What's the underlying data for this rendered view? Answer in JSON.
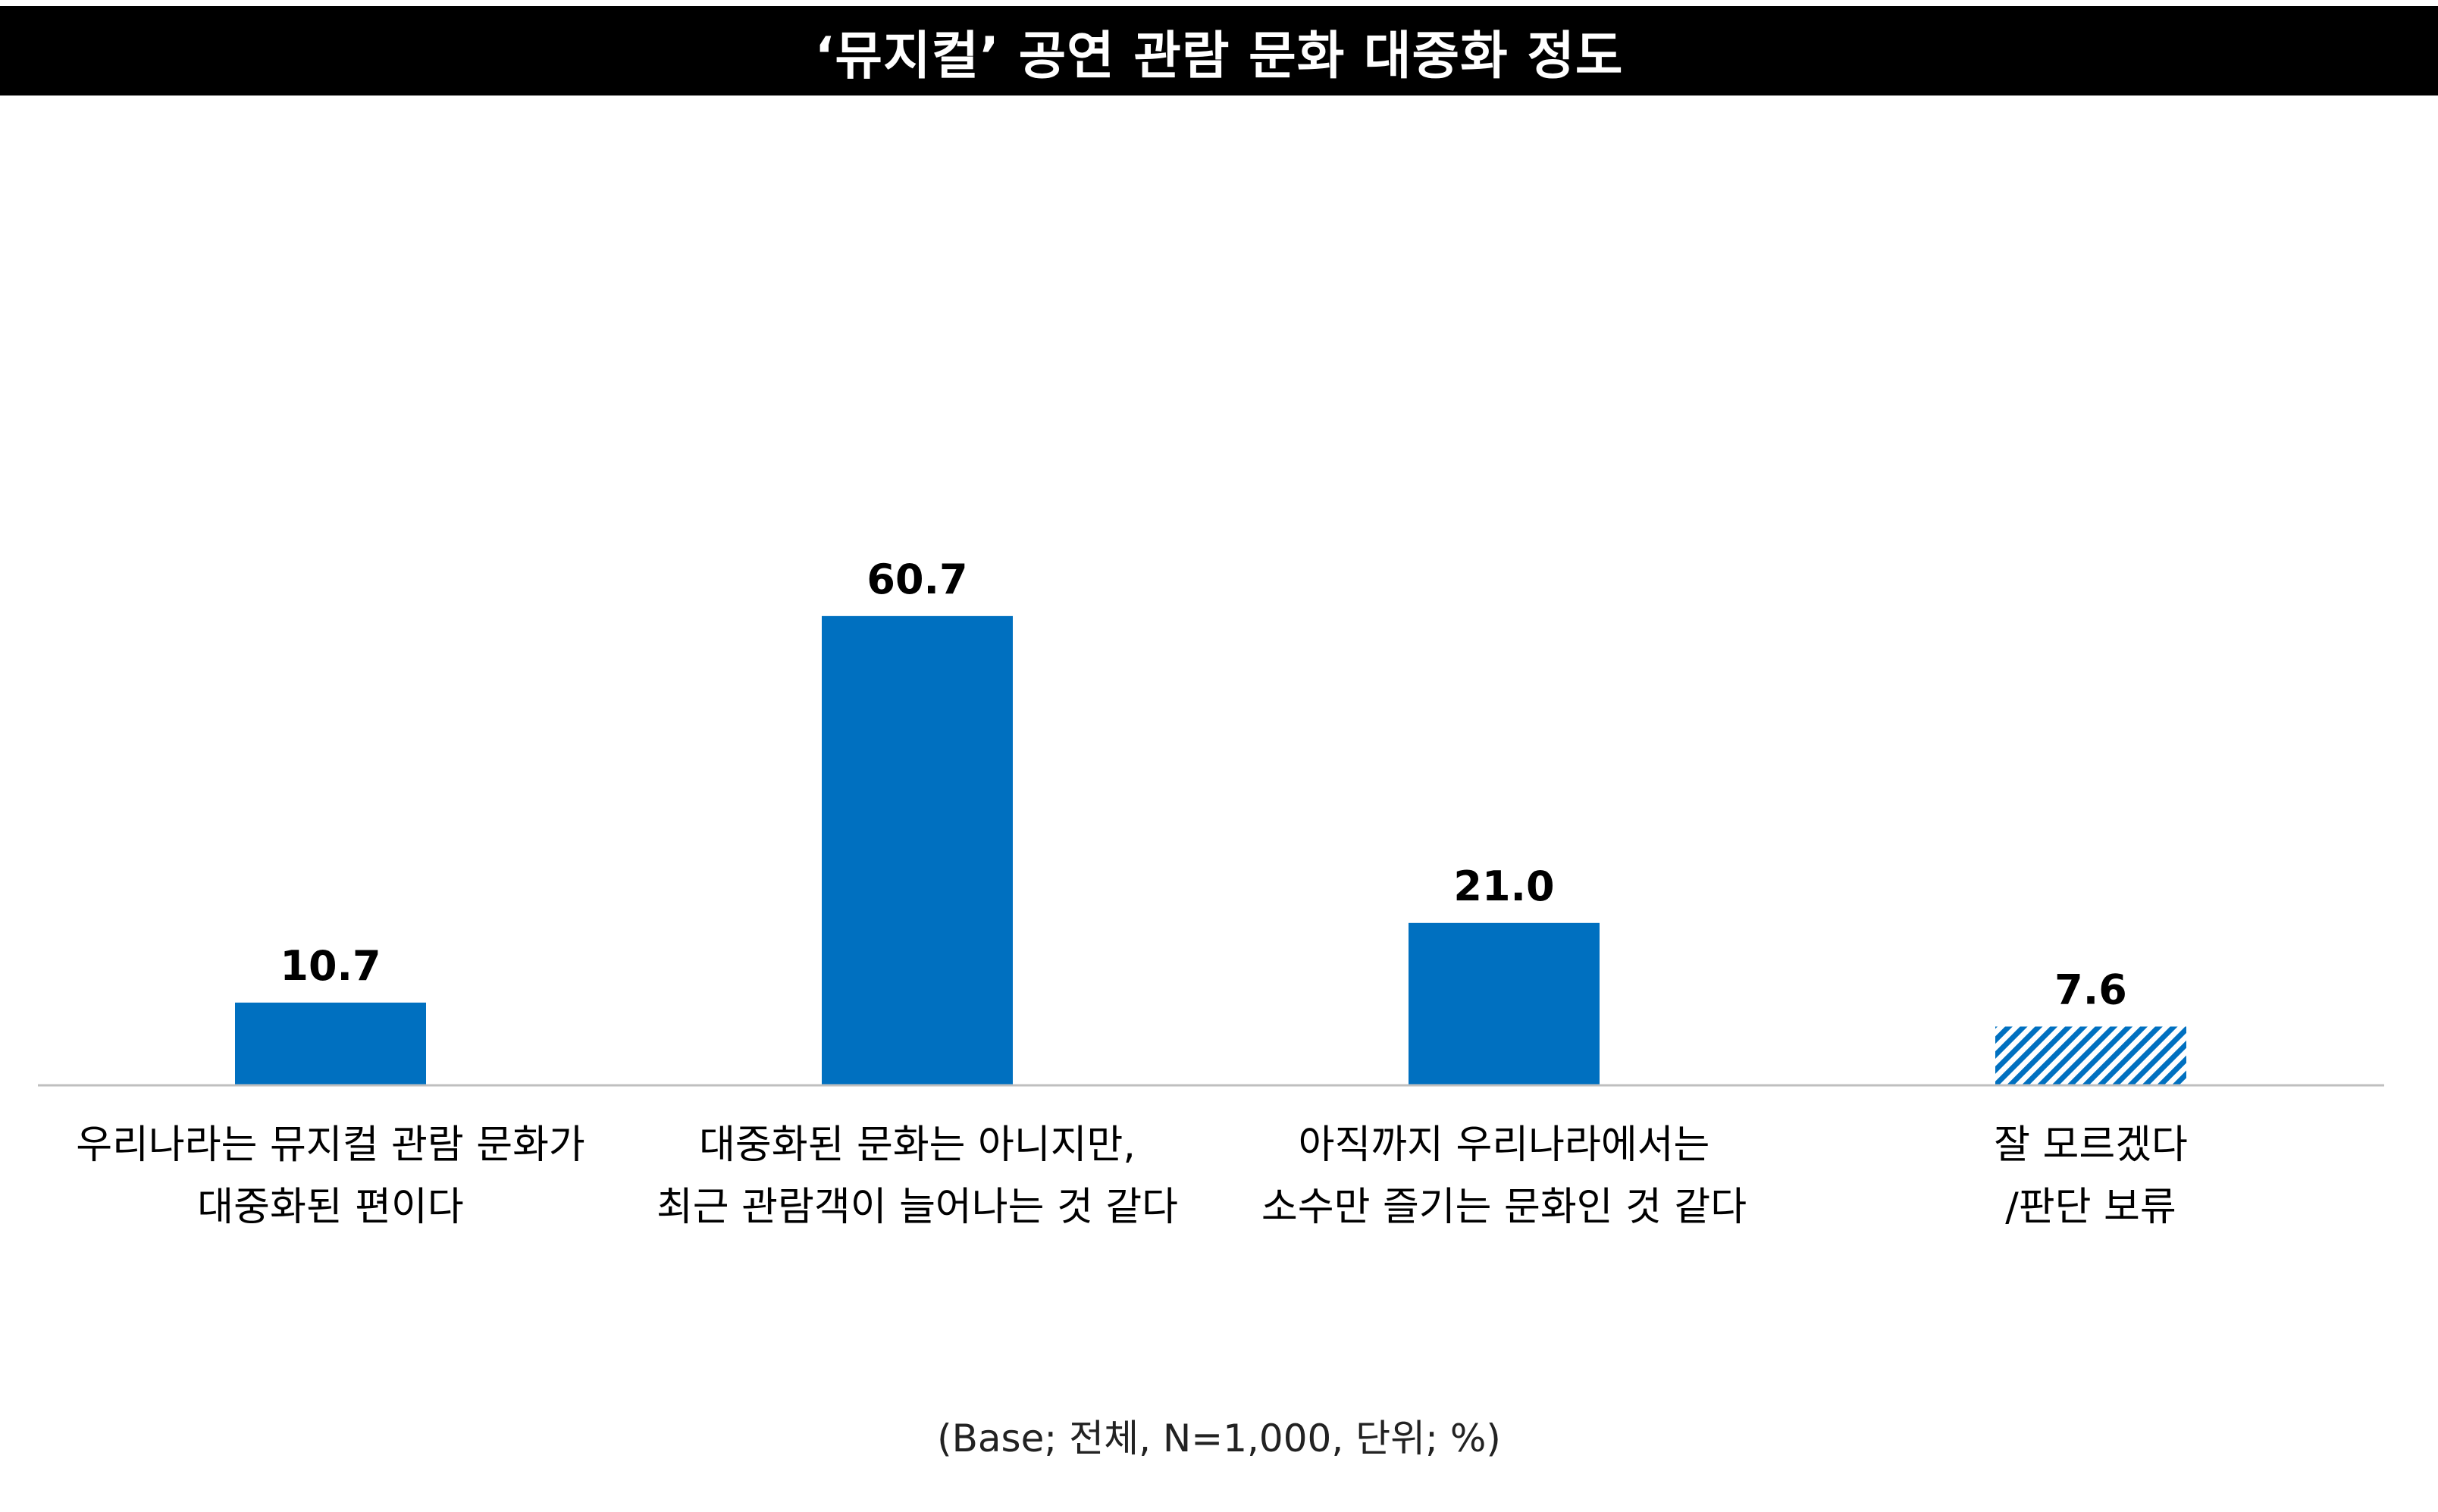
{
  "title": "‘뮤지컬’ 공연 관람 문화 대중화 정도",
  "footnote": "(Base; 전체, N=1,000, 단위; %)",
  "colors": {
    "bar": "#0070C0",
    "title_bg": "#000000",
    "title_text": "#FFFFFF",
    "axis": "#BFBFBF"
  },
  "chart_data": {
    "type": "bar",
    "title": "‘뮤지컬’ 공연 관람 문화 대중화 정도",
    "categories": [
      [
        "우리나라는 뮤지컬 관람 문화가",
        "대중화된 편이다"
      ],
      [
        "대중화된 문화는 아니지만,",
        "최근 관람객이 늘어나는 것 같다"
      ],
      [
        "아직까지 우리나라에서는",
        "소수만 즐기는 문화인 것 같다"
      ],
      [
        "잘 모르겠다",
        "/판단 보류"
      ]
    ],
    "values": [
      10.7,
      60.7,
      21.0,
      7.6
    ],
    "value_labels": [
      "10.7",
      "60.7",
      "21.0",
      "7.6"
    ],
    "patterns": [
      "solid",
      "solid",
      "solid",
      "hatched"
    ],
    "unit": "%",
    "ylim": [
      0,
      70
    ],
    "grid": false,
    "legend": "none"
  }
}
